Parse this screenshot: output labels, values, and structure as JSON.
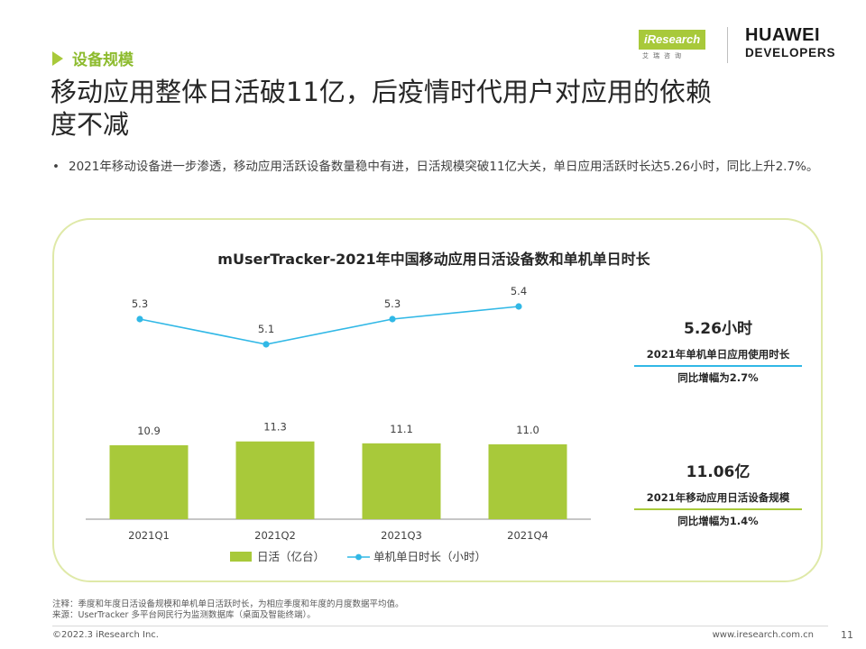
{
  "header": {
    "section": "设备规模",
    "headline": "移动应用整体日活破11亿，后疫情时代用户对应用的依赖度不减",
    "bullet": "2021年移动设备进一步渗透，移动应用活跃设备数量稳中有进，日活规模突破11亿大关，单日应用活跃时长达5.26小时，同比上升2.7%。"
  },
  "logos": {
    "iresearch": "iResearch",
    "iresearch_sub": "艾瑞咨询",
    "huawei_line1": "HUAWEI",
    "huawei_line2": "DEVELOPERS"
  },
  "chart_data": {
    "type": "bar",
    "title": "mUserTracker-2021年中国移动应用日活设备数和单机单日时长",
    "categories": [
      "2021Q1",
      "2021Q2",
      "2021Q3",
      "2021Q4"
    ],
    "series": [
      {
        "name": "日活（亿台）",
        "type": "bar",
        "values": [
          10.9,
          11.3,
          11.1,
          11.0
        ],
        "color": "#a8c93a"
      },
      {
        "name": "单机单日时长（小时）",
        "type": "line",
        "values": [
          5.3,
          5.1,
          5.3,
          5.4
        ],
        "color": "#31b8e6"
      }
    ],
    "legend_position": "bottom",
    "grid": false
  },
  "kpis": [
    {
      "value": "5.26小时",
      "label": "2021年单机单日应用使用时长",
      "growth": "同比增幅为2.7%",
      "rule_color": "#31b8e6"
    },
    {
      "value": "11.06亿",
      "label": "2021年移动应用日活设备规模",
      "growth": "同比增幅为1.4%",
      "rule_color": "#a8c93a"
    }
  ],
  "footer": {
    "note": "注释：季度和年度日活设备规模和单机单日活跃时长，为相应季度和年度的月度数据平均值。",
    "source": "来源：UserTracker 多平台网民行为监测数据库（桌面及智能终端）。",
    "copyright": "©2022.3 iResearch Inc.",
    "website": "www.iresearch.com.cn",
    "page": "11"
  }
}
